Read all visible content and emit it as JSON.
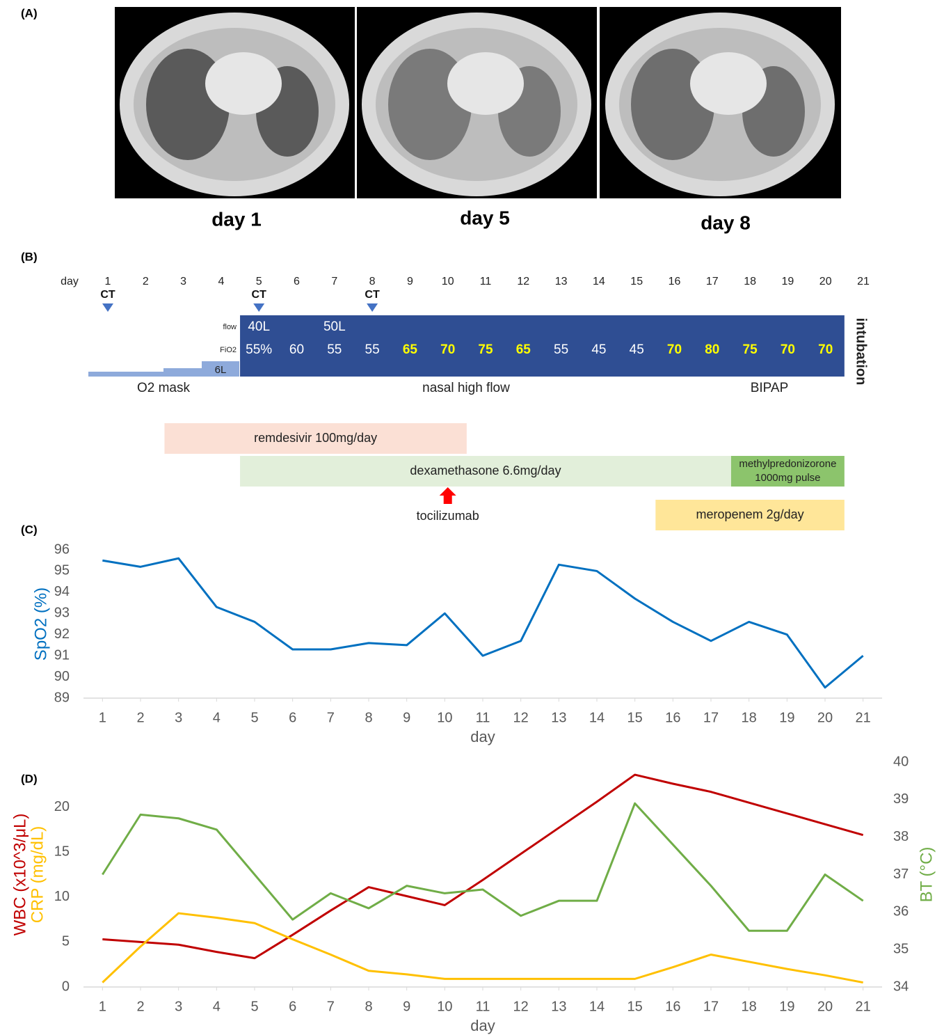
{
  "panel_a": {
    "label": "(A)",
    "captions": [
      "day 1",
      "day 5",
      "day 8"
    ]
  },
  "panel_b": {
    "label": "(B)",
    "day_label": "day",
    "days": [
      1,
      2,
      3,
      4,
      5,
      6,
      7,
      8,
      9,
      10,
      11,
      12,
      13,
      14,
      15,
      16,
      17,
      18,
      19,
      20,
      21
    ],
    "ct": {
      "label": "CT",
      "days": [
        1,
        5,
        8
      ]
    },
    "flow": {
      "label": "flow",
      "values": [
        "40L",
        "50L"
      ],
      "days": [
        5,
        7
      ]
    },
    "fio2": {
      "label": "FiO2",
      "values": [
        "55%",
        60,
        55,
        55,
        65,
        70,
        75,
        65,
        55,
        45,
        45,
        70,
        80,
        75,
        70,
        70
      ],
      "days": [
        5,
        6,
        7,
        8,
        9,
        10,
        11,
        12,
        13,
        14,
        15,
        16,
        17,
        18,
        19,
        20
      ],
      "colors": [
        "#ffffff",
        "#ffffff",
        "#ffffff",
        "#ffffff",
        "#ffff00",
        "#ffff00",
        "#ffff00",
        "#ffff00",
        "#ffffff",
        "#ffffff",
        "#ffffff",
        "#ffff00",
        "#ffff00",
        "#ffff00",
        "#ffff00",
        "#ffff00"
      ],
      "box_color": "#2f4e93"
    },
    "mask_flow": "6L",
    "support": [
      "O2 mask",
      "nasal high flow",
      "BIPAP",
      "intubation"
    ],
    "treatments": [
      {
        "label": [
          "remdesivir 100mg/day"
        ],
        "start": 2.5,
        "end": 10.5,
        "color": "#fbe0d5"
      },
      {
        "label": [
          "dexamethasone 6.6mg/day"
        ],
        "start": 4.5,
        "end": 17.5,
        "color": "#e2efda"
      },
      {
        "label": [
          "methylpredonizorone",
          "1000mg pulse"
        ],
        "start": 17.5,
        "end": 20.5,
        "color": "#8cc46c"
      },
      {
        "label": [
          "meropenem 2g/day"
        ],
        "start": 15.5,
        "end": 20.5,
        "color": "#ffe699"
      }
    ],
    "tocilizumab": {
      "label": "tocilizumab",
      "day": 10,
      "color": "#ff0000"
    }
  },
  "chart_data": [
    {
      "type": "line",
      "label": "(C)",
      "xlabel": "day",
      "x": [
        1,
        2,
        3,
        4,
        5,
        6,
        7,
        8,
        9,
        10,
        11,
        12,
        13,
        14,
        15,
        16,
        17,
        18,
        19,
        20,
        21
      ],
      "xlim": [
        0.5,
        21.5
      ],
      "xticks": [
        1,
        2,
        3,
        4,
        5,
        6,
        7,
        8,
        9,
        10,
        11,
        12,
        13,
        14,
        15,
        16,
        17,
        18,
        19,
        20,
        21
      ],
      "ylim": [
        89,
        96
      ],
      "yticks": [
        89,
        90,
        91,
        92,
        93,
        94,
        95,
        96
      ],
      "series": [
        {
          "name": "SpO2 (%)",
          "color": "#0070c0",
          "values": [
            95.5,
            95.2,
            95.6,
            93.3,
            92.6,
            91.3,
            91.3,
            91.6,
            91.5,
            93.0,
            91.0,
            91.7,
            95.3,
            95.0,
            93.7,
            92.6,
            91.7,
            92.6,
            92.0,
            89.5,
            91.0
          ]
        }
      ]
    },
    {
      "type": "line",
      "label": "(D)",
      "xlabel": "day",
      "x": [
        1,
        2,
        3,
        4,
        5,
        6,
        7,
        8,
        9,
        10,
        11,
        12,
        13,
        14,
        15,
        16,
        17,
        18,
        19,
        20,
        21
      ],
      "xlim": [
        0.5,
        21.5
      ],
      "xticks": [
        1,
        2,
        3,
        4,
        5,
        6,
        7,
        8,
        9,
        10,
        11,
        12,
        13,
        14,
        15,
        16,
        17,
        18,
        19,
        20,
        21
      ],
      "ylim": [
        0,
        25
      ],
      "yticks": [
        0,
        5,
        10,
        15,
        20
      ],
      "y2lim": [
        34,
        40
      ],
      "y2ticks": [
        34,
        35,
        36,
        37,
        38,
        39,
        40
      ],
      "series": [
        {
          "name": "WBC (x10^3/μL)",
          "color": "#c00000",
          "values": [
            5.3,
            5.0,
            4.7,
            3.9,
            3.2,
            5.8,
            8.5,
            11.1,
            10.1,
            9.1,
            11.9,
            14.8,
            17.7,
            20.6,
            23.6,
            22.6,
            21.7,
            20.5,
            19.3,
            18.1,
            16.9
          ]
        },
        {
          "name": "CRP (mg/dL)",
          "color": "#ffc000",
          "values": [
            0.5,
            4.5,
            8.2,
            7.7,
            7.1,
            5.3,
            3.6,
            1.8,
            1.4,
            0.9,
            0.9,
            0.9,
            0.9,
            0.9,
            0.9,
            2.2,
            3.6,
            2.8,
            2.0,
            1.3,
            0.5
          ]
        },
        {
          "name": "BT (°C)",
          "color": "#70ad47",
          "axis": "y2",
          "values": [
            37.0,
            38.6,
            38.5,
            38.2,
            37.0,
            35.8,
            36.5,
            36.1,
            36.7,
            36.5,
            36.6,
            35.9,
            36.3,
            36.3,
            38.9,
            37.8,
            36.7,
            35.5,
            35.5,
            37.0,
            36.3
          ]
        }
      ]
    }
  ]
}
